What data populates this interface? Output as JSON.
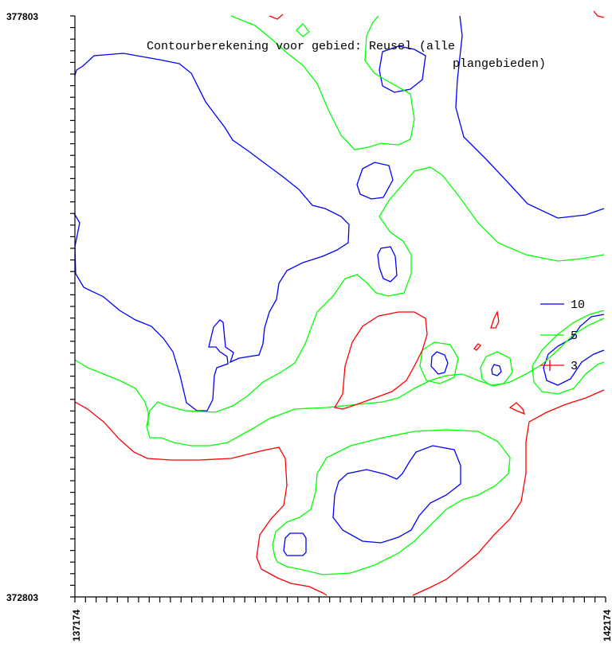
{
  "chart_data": {
    "type": "contour",
    "title_lines": [
      "Contourberekening voor gebied: Reusel (alle",
      "plangebieden)"
    ],
    "xlim": [
      137174,
      142174
    ],
    "ylim": [
      372803,
      377803
    ],
    "x_tick_labels": [
      "137174",
      "142174"
    ],
    "y_tick_labels": [
      "377803",
      "372803"
    ],
    "legend_position": "right",
    "series": [
      {
        "name": "10",
        "color": "#0000ff"
      },
      {
        "name": "5",
        "color": "#00ff00"
      },
      {
        "name": "3",
        "color": "#ff0000"
      }
    ]
  }
}
